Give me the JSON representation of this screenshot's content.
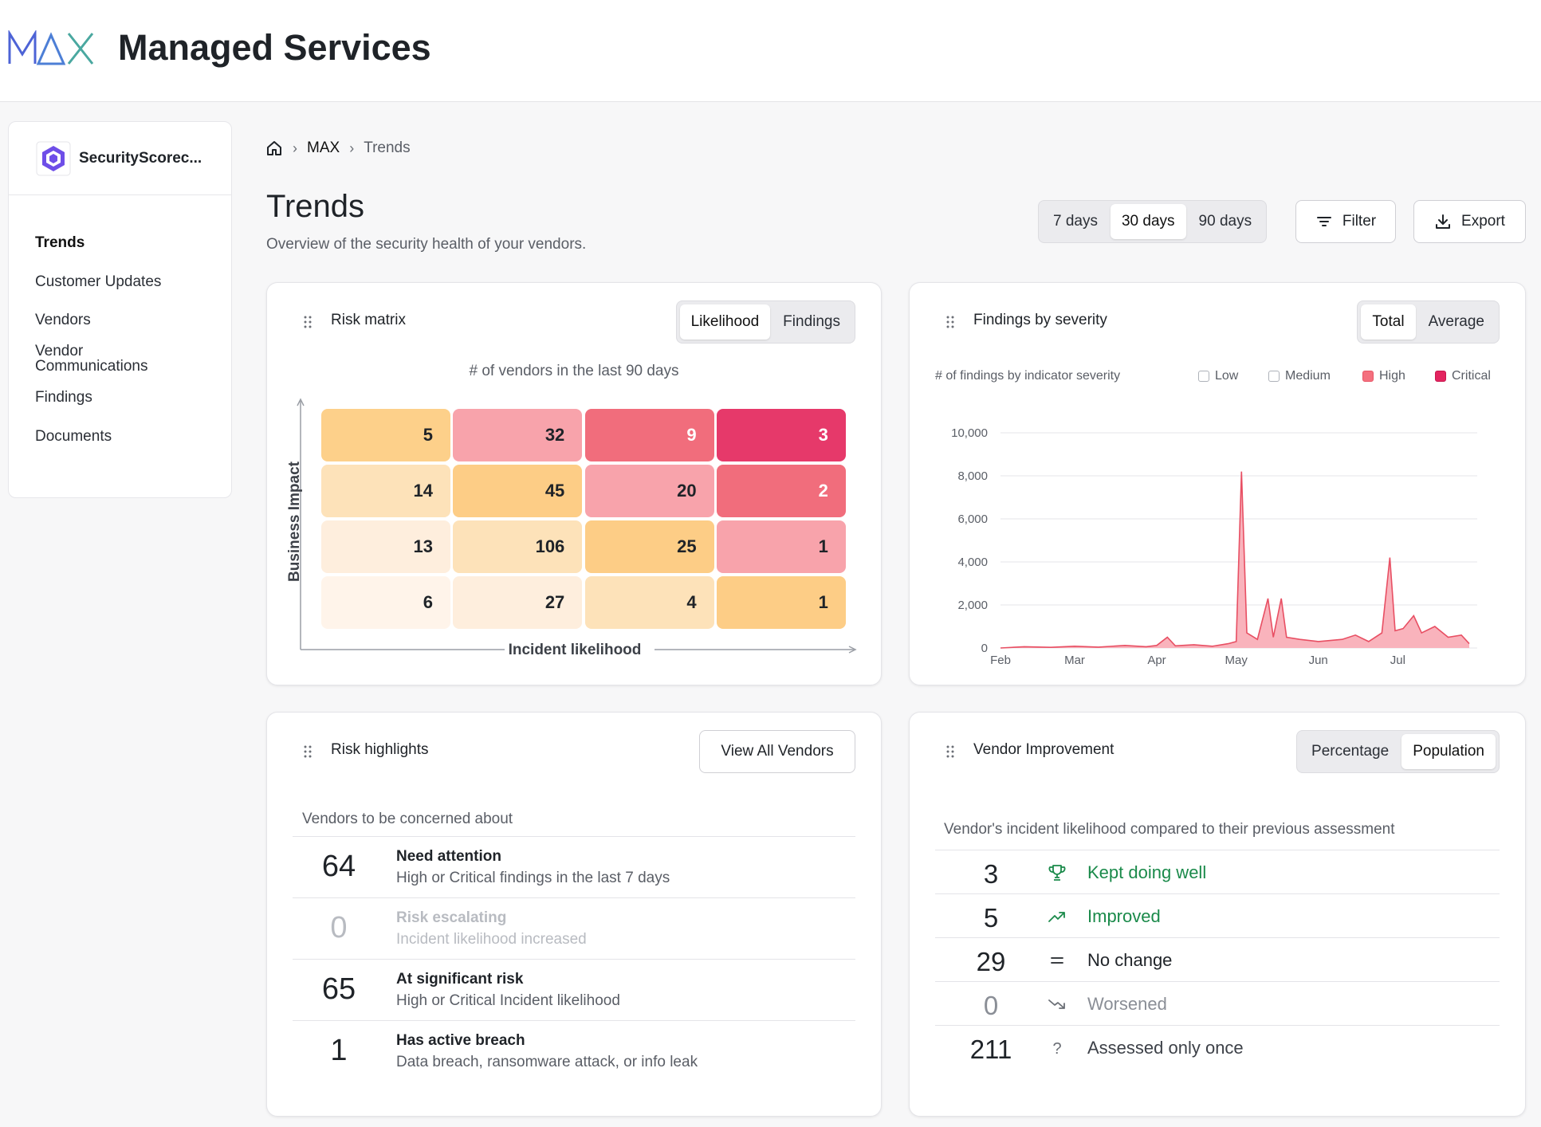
{
  "header": {
    "app_title": "Managed Services",
    "logo_text": "MAX"
  },
  "sidebar": {
    "org_name": "SecurityScorec...",
    "items": [
      {
        "label": "Trends",
        "active": true
      },
      {
        "label": "Customer Updates"
      },
      {
        "label": "Vendors"
      },
      {
        "label": "Vendor Communications"
      },
      {
        "label": "Findings"
      },
      {
        "label": "Documents"
      }
    ]
  },
  "breadcrumb": {
    "items": [
      "MAX",
      "Trends"
    ]
  },
  "page": {
    "title": "Trends",
    "subtitle": "Overview of the security health of your vendors."
  },
  "range": {
    "options": [
      "7 days",
      "30 days",
      "90 days"
    ],
    "selected": "30 days"
  },
  "toolbar": {
    "filter_label": "Filter",
    "export_label": "Export"
  },
  "risk_matrix": {
    "title": "Risk matrix",
    "tabs": [
      "Likelihood",
      "Findings"
    ],
    "selected_tab": "Likelihood",
    "caption": "# of vendors in the last 90 days",
    "x_label": "Incident likelihood",
    "y_label": "Business Impact",
    "rows": [
      [
        5,
        32,
        9,
        3
      ],
      [
        14,
        45,
        20,
        2
      ],
      [
        13,
        106,
        25,
        1
      ],
      [
        6,
        27,
        4,
        1
      ]
    ],
    "colors": [
      [
        "#fdd08a",
        "#f8a3ab",
        "#f16d7c",
        "#e6396a"
      ],
      [
        "#fde2b9",
        "#fdcd86",
        "#f8a3ab",
        "#f16d7c"
      ],
      [
        "#feeedd",
        "#fde2b9",
        "#fdcd86",
        "#f8a3ab"
      ],
      [
        "#fff4ea",
        "#feeedd",
        "#fde2b9",
        "#fdcd86"
      ]
    ]
  },
  "findings_by_severity": {
    "title": "Findings by severity",
    "tabs": [
      "Total",
      "Average"
    ],
    "selected_tab": "Total",
    "subtitle": "# of findings by indicator severity",
    "legend": [
      {
        "name": "Low",
        "color": "#ffffff",
        "checked": false
      },
      {
        "name": "Medium",
        "color": "#ffffff",
        "checked": false
      },
      {
        "name": "High",
        "color": "#f4707e",
        "checked": true
      },
      {
        "name": "Critical",
        "color": "#e3245f",
        "checked": true
      }
    ],
    "chart_data": {
      "type": "area",
      "title": "",
      "ylabel": "",
      "xlabel": "",
      "ylim": [
        0,
        10000
      ],
      "y_ticks": [
        "10,000",
        "8,000",
        "6,000",
        "4,000",
        "2,000",
        "0"
      ],
      "x_ticks": [
        "Feb",
        "Mar",
        "Apr",
        "May",
        "Jun",
        "Jul"
      ],
      "series": [
        {
          "name": "High",
          "points": [
            [
              "Feb 1",
              0
            ],
            [
              "Feb 10",
              60
            ],
            [
              "Feb 20",
              30
            ],
            [
              "Mar 1",
              80
            ],
            [
              "Mar 10",
              40
            ],
            [
              "Mar 20",
              120
            ],
            [
              "Mar 28",
              60
            ],
            [
              "Apr 1",
              120
            ],
            [
              "Apr 5",
              500
            ],
            [
              "Apr 8",
              100
            ],
            [
              "Apr 15",
              150
            ],
            [
              "Apr 22",
              80
            ],
            [
              "Apr 28",
              200
            ],
            [
              "May 1",
              300
            ],
            [
              "May 3",
              8200
            ],
            [
              "May 5",
              700
            ],
            [
              "May 9",
              400
            ],
            [
              "May 13",
              2300
            ],
            [
              "May 15",
              500
            ],
            [
              "May 18",
              2300
            ],
            [
              "May 20",
              500
            ],
            [
              "May 25",
              400
            ],
            [
              "Jun 1",
              300
            ],
            [
              "Jun 10",
              400
            ],
            [
              "Jun 15",
              600
            ],
            [
              "Jun 20",
              300
            ],
            [
              "Jun 25",
              700
            ],
            [
              "Jun 28",
              4200
            ],
            [
              "Jun 30",
              800
            ],
            [
              "Jul 3",
              900
            ],
            [
              "Jul 7",
              1500
            ],
            [
              "Jul 10",
              700
            ],
            [
              "Jul 15",
              1000
            ],
            [
              "Jul 20",
              500
            ],
            [
              "Jul 25",
              600
            ],
            [
              "Jul 28",
              200
            ]
          ]
        }
      ]
    }
  },
  "risk_highlights": {
    "title": "Risk highlights",
    "view_all_label": "View All Vendors",
    "caption": "Vendors to be concerned about",
    "items": [
      {
        "count": "64",
        "title": "Need attention",
        "desc": "High or Critical findings in the last 7 days"
      },
      {
        "count": "0",
        "title": "Risk escalating",
        "desc": "Incident likelihood increased"
      },
      {
        "count": "65",
        "title": "At significant risk",
        "desc": "High or Critical Incident likelihood"
      },
      {
        "count": "1",
        "title": "Has active breach",
        "desc": "Data breach, ransomware attack, or info leak"
      }
    ]
  },
  "vendor_improvement": {
    "title": "Vendor Improvement",
    "tabs": [
      "Percentage",
      "Population"
    ],
    "selected_tab": "Population",
    "caption": "Vendor's incident likelihood compared to their previous assessment",
    "items": [
      {
        "count": "3",
        "label": "Kept doing well",
        "icon": "trophy-icon"
      },
      {
        "count": "5",
        "label": "Improved",
        "icon": "trending-up-icon"
      },
      {
        "count": "29",
        "label": "No change",
        "icon": "equals-icon"
      },
      {
        "count": "0",
        "label": "Worsened",
        "icon": "trending-down-icon"
      },
      {
        "count": "211",
        "label": "Assessed only once",
        "icon": "question-icon"
      }
    ]
  }
}
